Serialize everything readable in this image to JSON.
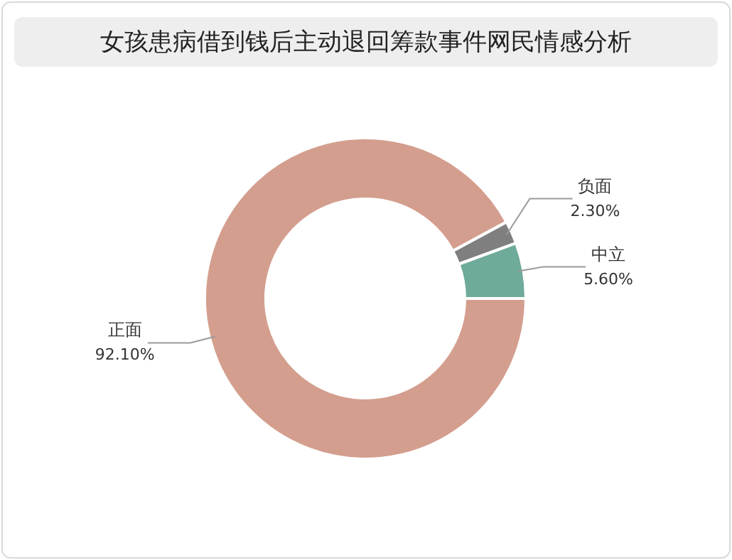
{
  "chart_data": {
    "type": "donut",
    "title": "女孩患病借到钱后主动退回筹款事件网民情感分析",
    "categories": [
      "正面",
      "负面",
      "中立"
    ],
    "values": [
      92.1,
      2.3,
      5.6
    ],
    "value_labels": [
      "92.10%",
      "2.30%",
      "5.60%"
    ],
    "colors": [
      "#d49e8e",
      "#7f7f7f",
      "#6fab9a"
    ]
  }
}
